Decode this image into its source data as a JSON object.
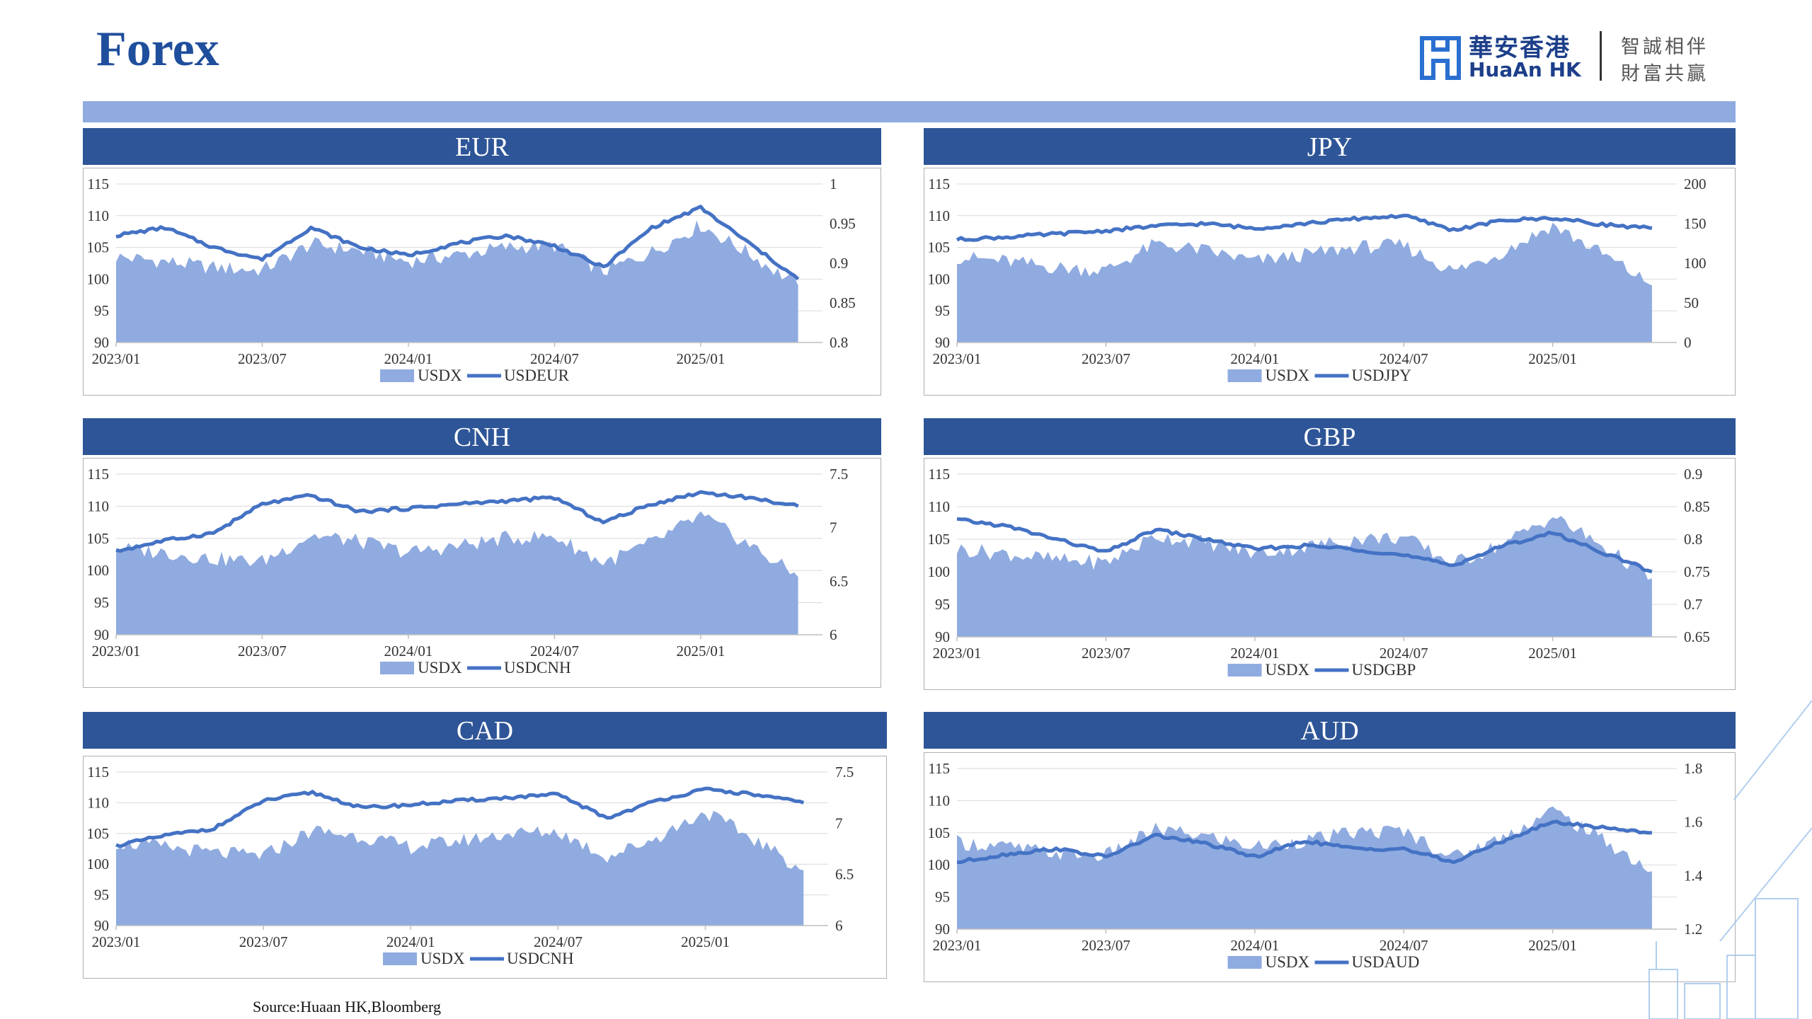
{
  "page": {
    "title": "Forex",
    "source": "Source:Huaan HK,Bloomberg"
  },
  "logo": {
    "name_cn": "華安香港",
    "name_en": "HuaAn HK",
    "slogan_line1": "智誠相伴",
    "slogan_line2": "財富共贏"
  },
  "colors": {
    "header_bg": "#2e5597",
    "band": "#8fabe0",
    "area_fill": "#8fabe0",
    "line": "#4472c4",
    "title": "#1f4e9c"
  },
  "chart_data": [
    {
      "id": "eur",
      "title": "EUR",
      "type": "area+line",
      "x_ticks": [
        "2023/01",
        "2023/07",
        "2024/01",
        "2024/07",
        "2025/01"
      ],
      "y_left": {
        "min": 90,
        "max": 115,
        "ticks": [
          115,
          110,
          105,
          100,
          95,
          90
        ]
      },
      "y_right": {
        "min": 0.8,
        "max": 1,
        "ticks": [
          "1",
          "0.95",
          "0.9",
          "0.85",
          "0.8"
        ]
      },
      "series": [
        {
          "name": "USDX",
          "type": "area",
          "axis": "left",
          "x": [
            "2023/01",
            "2023/03",
            "2023/05",
            "2023/07",
            "2023/09",
            "2023/11",
            "2024/01",
            "2024/03",
            "2024/05",
            "2024/07",
            "2024/09",
            "2024/11",
            "2025/01",
            "2025/03",
            "2025/05"
          ],
          "values": [
            103.5,
            102.8,
            101.8,
            101.4,
            105.5,
            104.5,
            102.8,
            103.8,
            105.0,
            105.3,
            101.2,
            104.3,
            108.5,
            104.0,
            99.0
          ]
        },
        {
          "name": "USDEUR",
          "type": "line",
          "axis": "right",
          "x": [
            "2023/01",
            "2023/03",
            "2023/05",
            "2023/07",
            "2023/09",
            "2023/11",
            "2024/01",
            "2024/03",
            "2024/05",
            "2024/07",
            "2024/09",
            "2024/11",
            "2025/01",
            "2025/03",
            "2025/05"
          ],
          "values": [
            0.935,
            0.945,
            0.92,
            0.905,
            0.945,
            0.92,
            0.91,
            0.925,
            0.935,
            0.922,
            0.895,
            0.945,
            0.97,
            0.925,
            0.88
          ]
        }
      ],
      "legend": [
        "USDX",
        "USDEUR"
      ]
    },
    {
      "id": "jpy",
      "title": "JPY",
      "type": "area+line",
      "x_ticks": [
        "2023/01",
        "2023/07",
        "2024/01",
        "2024/07",
        "2025/01"
      ],
      "y_left": {
        "min": 90,
        "max": 115,
        "ticks": [
          115,
          110,
          105,
          100,
          95,
          90
        ]
      },
      "y_right": {
        "min": 0,
        "max": 200,
        "ticks": [
          "200",
          "150",
          "100",
          "50",
          "0"
        ]
      },
      "series": [
        {
          "name": "USDX",
          "type": "area",
          "axis": "left",
          "x": [
            "2023/01",
            "2023/03",
            "2023/05",
            "2023/07",
            "2023/09",
            "2023/11",
            "2024/01",
            "2024/03",
            "2024/05",
            "2024/07",
            "2024/09",
            "2024/11",
            "2025/01",
            "2025/03",
            "2025/05"
          ],
          "values": [
            103.5,
            102.8,
            101.8,
            101.4,
            105.5,
            104.5,
            102.8,
            103.8,
            105.0,
            105.3,
            101.2,
            104.3,
            108.5,
            104.0,
            99.0
          ]
        },
        {
          "name": "USDJPY",
          "type": "line",
          "axis": "right",
          "x": [
            "2023/01",
            "2023/03",
            "2023/05",
            "2023/07",
            "2023/09",
            "2023/11",
            "2024/01",
            "2024/03",
            "2024/05",
            "2024/07",
            "2024/09",
            "2024/11",
            "2025/01",
            "2025/03",
            "2025/05"
          ],
          "values": [
            130,
            133,
            137,
            141,
            147,
            150,
            144,
            150,
            156,
            160,
            142,
            154,
            157,
            149,
            144
          ]
        }
      ],
      "legend": [
        "USDX",
        "USDJPY"
      ]
    },
    {
      "id": "cnh",
      "title": "CNH",
      "type": "area+line",
      "x_ticks": [
        "2023/01",
        "2023/07",
        "2024/01",
        "2024/07",
        "2025/01"
      ],
      "y_left": {
        "min": 90,
        "max": 115,
        "ticks": [
          115,
          110,
          105,
          100,
          95,
          90
        ]
      },
      "y_right": {
        "min": 6,
        "max": 7.5,
        "ticks": [
          "7.5",
          "7",
          "6.5",
          "6"
        ]
      },
      "series": [
        {
          "name": "USDX",
          "type": "area",
          "axis": "left",
          "x": [
            "2023/01",
            "2023/03",
            "2023/05",
            "2023/07",
            "2023/09",
            "2023/11",
            "2024/01",
            "2024/03",
            "2024/05",
            "2024/07",
            "2024/09",
            "2024/11",
            "2025/01",
            "2025/03",
            "2025/05"
          ],
          "values": [
            103.5,
            102.8,
            101.8,
            101.4,
            105.5,
            104.5,
            102.8,
            103.8,
            105.0,
            105.3,
            101.2,
            104.3,
            108.5,
            104.0,
            99.0
          ]
        },
        {
          "name": "USDCNH",
          "type": "line",
          "axis": "right",
          "x": [
            "2023/01",
            "2023/03",
            "2023/05",
            "2023/07",
            "2023/09",
            "2023/11",
            "2024/01",
            "2024/03",
            "2024/05",
            "2024/07",
            "2024/09",
            "2024/11",
            "2025/01",
            "2025/03",
            "2025/05"
          ],
          "values": [
            6.78,
            6.88,
            6.95,
            7.22,
            7.3,
            7.15,
            7.18,
            7.22,
            7.25,
            7.28,
            7.05,
            7.22,
            7.33,
            7.28,
            7.2
          ]
        }
      ],
      "legend": [
        "USDX",
        "USDCNH"
      ]
    },
    {
      "id": "gbp",
      "title": "GBP",
      "type": "area+line",
      "x_ticks": [
        "2023/01",
        "2023/07",
        "2024/01",
        "2024/07",
        "2025/01"
      ],
      "y_left": {
        "min": 90,
        "max": 115,
        "ticks": [
          115,
          110,
          105,
          100,
          95,
          90
        ]
      },
      "y_right": {
        "min": 0.65,
        "max": 0.9,
        "ticks": [
          "0.9",
          "0.85",
          "0.8",
          "0.75",
          "0.7",
          "0.65"
        ]
      },
      "series": [
        {
          "name": "USDX",
          "type": "area",
          "axis": "left",
          "x": [
            "2023/01",
            "2023/03",
            "2023/05",
            "2023/07",
            "2023/09",
            "2023/11",
            "2024/01",
            "2024/03",
            "2024/05",
            "2024/07",
            "2024/09",
            "2024/11",
            "2025/01",
            "2025/03",
            "2025/05"
          ],
          "values": [
            103.5,
            102.8,
            101.8,
            101.4,
            105.5,
            104.5,
            102.8,
            103.8,
            105.0,
            105.3,
            101.2,
            104.3,
            108.5,
            104.0,
            99.0
          ]
        },
        {
          "name": "USDGBP",
          "type": "line",
          "axis": "right",
          "x": [
            "2023/01",
            "2023/03",
            "2023/05",
            "2023/07",
            "2023/09",
            "2023/11",
            "2024/01",
            "2024/03",
            "2024/05",
            "2024/07",
            "2024/09",
            "2024/11",
            "2025/01",
            "2025/03",
            "2025/05"
          ],
          "values": [
            0.83,
            0.82,
            0.8,
            0.78,
            0.815,
            0.8,
            0.785,
            0.79,
            0.785,
            0.775,
            0.76,
            0.79,
            0.81,
            0.78,
            0.75
          ]
        }
      ],
      "legend": [
        "USDX",
        "USDGBP"
      ]
    },
    {
      "id": "cad",
      "title": "CAD",
      "type": "area+line",
      "x_ticks": [
        "2023/01",
        "2023/07",
        "2024/01",
        "2024/07",
        "2025/01"
      ],
      "y_left": {
        "min": 90,
        "max": 115,
        "ticks": [
          115,
          110,
          105,
          100,
          95,
          90
        ]
      },
      "y_right": {
        "min": 6,
        "max": 7.5,
        "ticks": [
          "7.5",
          "7",
          "6.5",
          "6"
        ]
      },
      "series": [
        {
          "name": "USDX",
          "type": "area",
          "axis": "left",
          "x": [
            "2023/01",
            "2023/03",
            "2023/05",
            "2023/07",
            "2023/09",
            "2023/11",
            "2024/01",
            "2024/03",
            "2024/05",
            "2024/07",
            "2024/09",
            "2024/11",
            "2025/01",
            "2025/03",
            "2025/05"
          ],
          "values": [
            103.5,
            102.8,
            101.8,
            101.4,
            105.5,
            104.5,
            102.8,
            103.8,
            105.0,
            105.3,
            101.2,
            104.3,
            108.5,
            104.0,
            99.0
          ]
        },
        {
          "name": "USDCNH",
          "type": "line",
          "axis": "right",
          "x": [
            "2023/01",
            "2023/03",
            "2023/05",
            "2023/07",
            "2023/09",
            "2023/11",
            "2024/01",
            "2024/03",
            "2024/05",
            "2024/07",
            "2024/09",
            "2024/11",
            "2025/01",
            "2025/03",
            "2025/05"
          ],
          "values": [
            6.78,
            6.88,
            6.95,
            7.22,
            7.3,
            7.15,
            7.18,
            7.22,
            7.25,
            7.28,
            7.05,
            7.22,
            7.33,
            7.28,
            7.2
          ]
        }
      ],
      "legend": [
        "USDX",
        "USDCNH"
      ]
    },
    {
      "id": "aud",
      "title": "AUD",
      "type": "area+line",
      "x_ticks": [
        "2023/01",
        "2023/07",
        "2024/01",
        "2024/07",
        "2025/01"
      ],
      "y_left": {
        "min": 90,
        "max": 115,
        "ticks": [
          115,
          110,
          105,
          100,
          95,
          90
        ]
      },
      "y_right": {
        "min": 1.2,
        "max": 1.8,
        "ticks": [
          "1.8",
          "1.6",
          "1.4",
          "1.2"
        ]
      },
      "series": [
        {
          "name": "USDX",
          "type": "area",
          "axis": "left",
          "x": [
            "2023/01",
            "2023/03",
            "2023/05",
            "2023/07",
            "2023/09",
            "2023/11",
            "2024/01",
            "2024/03",
            "2024/05",
            "2024/07",
            "2024/09",
            "2024/11",
            "2025/01",
            "2025/03",
            "2025/05"
          ],
          "values": [
            103.5,
            102.8,
            101.8,
            101.4,
            105.5,
            104.5,
            102.8,
            103.8,
            105.0,
            105.3,
            101.2,
            104.3,
            108.5,
            104.0,
            99.0
          ]
        },
        {
          "name": "USDAUD",
          "type": "line",
          "axis": "right",
          "x": [
            "2023/01",
            "2023/03",
            "2023/05",
            "2023/07",
            "2023/09",
            "2023/11",
            "2024/01",
            "2024/03",
            "2024/05",
            "2024/07",
            "2024/09",
            "2024/11",
            "2025/01",
            "2025/03",
            "2025/05"
          ],
          "values": [
            1.45,
            1.48,
            1.5,
            1.47,
            1.55,
            1.52,
            1.47,
            1.53,
            1.5,
            1.5,
            1.45,
            1.53,
            1.6,
            1.58,
            1.56
          ]
        }
      ],
      "legend": [
        "USDX",
        "USDAUD"
      ]
    }
  ]
}
